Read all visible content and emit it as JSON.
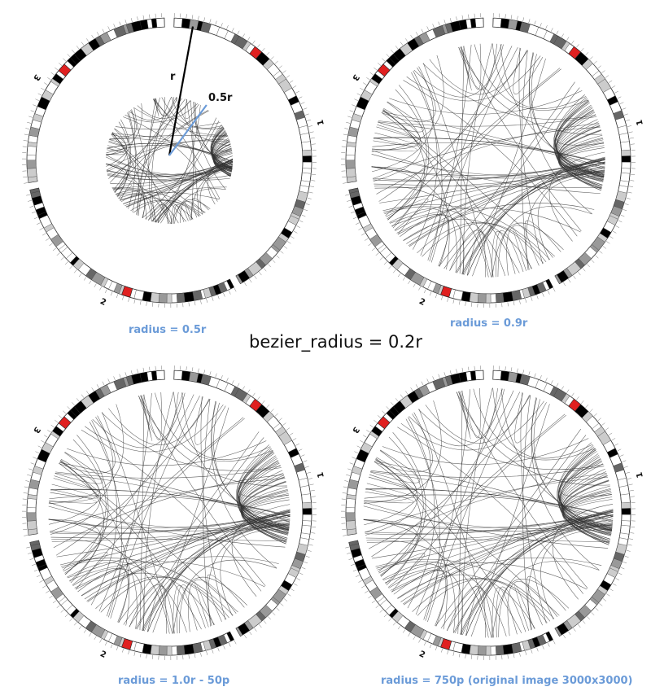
{
  "title": "bezier_radius = 0.2r",
  "annotations": {
    "r": "r",
    "half_r": "0.5r"
  },
  "chromosomes": [
    "1",
    "2",
    "3"
  ],
  "panels": [
    {
      "caption": "radius = 0.5r",
      "link_radius_fraction": 0.5
    },
    {
      "caption": "radius = 0.9r",
      "link_radius_fraction": 0.9
    },
    {
      "caption": "radius = 1.0r - 50p",
      "link_radius_fraction": 0.93
    },
    {
      "caption": "radius = 750p (original image 3000x3000)",
      "link_radius_fraction": 0.96
    }
  ],
  "colors": {
    "caption": "#6b9bd8",
    "highlight_band": "#e02020",
    "link": "#333333"
  }
}
